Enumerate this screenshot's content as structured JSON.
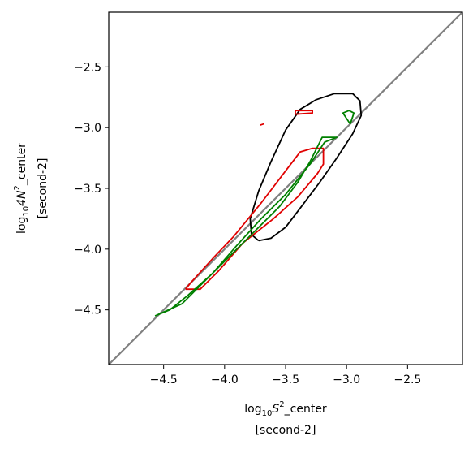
{
  "chart_data": {
    "type": "contour",
    "xlabel": {
      "prefix": "log",
      "sub": "10",
      "var": "S",
      "sup": "2",
      "suffix": "_center",
      "units": "[second-2]"
    },
    "ylabel": {
      "prefix": "log",
      "sub": "10",
      "var": "4N",
      "sup": "2",
      "suffix": "_center",
      "units": "[second-2]"
    },
    "xlim": [
      -4.95,
      -2.05
    ],
    "ylim": [
      -4.95,
      -2.05
    ],
    "grid": false,
    "x_ticks": [
      {
        "value": -4.5,
        "label": "−4.5"
      },
      {
        "value": -4.0,
        "label": "−4.0"
      },
      {
        "value": -3.5,
        "label": "−3.5"
      },
      {
        "value": -3.0,
        "label": "−3.0"
      },
      {
        "value": -2.5,
        "label": "−2.5"
      }
    ],
    "y_ticks": [
      {
        "value": -2.5,
        "label": "−2.5"
      },
      {
        "value": -3.0,
        "label": "−3.0"
      },
      {
        "value": -3.5,
        "label": "−3.5"
      },
      {
        "value": -4.0,
        "label": "−4.0"
      },
      {
        "value": -4.5,
        "label": "−4.5"
      }
    ],
    "reference_line": {
      "color": "#808080",
      "points": [
        [
          -4.95,
          -4.95
        ],
        [
          -2.05,
          -2.05
        ]
      ]
    },
    "series": [
      {
        "color": "#000000",
        "contours": [
          [
            [
              -3.72,
              -3.93
            ],
            [
              -3.62,
              -3.91
            ],
            [
              -3.5,
              -3.82
            ],
            [
              -3.37,
              -3.65
            ],
            [
              -3.22,
              -3.45
            ],
            [
              -3.08,
              -3.25
            ],
            [
              -2.95,
              -3.05
            ],
            [
              -2.88,
              -2.9
            ],
            [
              -2.89,
              -2.78
            ],
            [
              -2.95,
              -2.72
            ],
            [
              -3.1,
              -2.72
            ],
            [
              -3.25,
              -2.77
            ],
            [
              -3.38,
              -2.85
            ],
            [
              -3.5,
              -3.02
            ],
            [
              -3.62,
              -3.28
            ],
            [
              -3.72,
              -3.52
            ],
            [
              -3.79,
              -3.75
            ],
            [
              -3.78,
              -3.88
            ],
            [
              -3.72,
              -3.93
            ]
          ]
        ]
      },
      {
        "color": "#e00000",
        "contours": [
          [
            [
              -3.71,
              -2.98
            ],
            [
              -3.68,
              -2.97
            ],
            [
              -3.71,
              -2.98
            ]
          ],
          [
            [
              -3.42,
              -2.89
            ],
            [
              -3.28,
              -2.88
            ],
            [
              -3.28,
              -2.86
            ],
            [
              -3.42,
              -2.86
            ],
            [
              -3.42,
              -2.89
            ]
          ],
          [
            [
              -4.32,
              -4.33
            ],
            [
              -4.2,
              -4.33
            ],
            [
              -4.05,
              -4.18
            ],
            [
              -3.85,
              -3.95
            ],
            [
              -3.6,
              -3.75
            ],
            [
              -3.4,
              -3.57
            ],
            [
              -3.24,
              -3.38
            ],
            [
              -3.19,
              -3.3
            ],
            [
              -3.19,
              -3.17
            ],
            [
              -3.28,
              -3.17
            ],
            [
              -3.38,
              -3.2
            ],
            [
              -3.48,
              -3.33
            ],
            [
              -3.7,
              -3.62
            ],
            [
              -3.93,
              -3.9
            ],
            [
              -4.1,
              -4.08
            ],
            [
              -4.28,
              -4.28
            ],
            [
              -4.32,
              -4.33
            ]
          ]
        ]
      },
      {
        "color": "#008000",
        "contours": [
          [
            [
              -4.57,
              -4.55
            ],
            [
              -4.45,
              -4.5
            ],
            [
              -4.3,
              -4.38
            ],
            [
              -4.1,
              -4.2
            ],
            [
              -3.9,
              -3.97
            ],
            [
              -3.7,
              -3.75
            ],
            [
              -3.5,
              -3.55
            ],
            [
              -3.3,
              -3.3
            ],
            [
              -3.18,
              -3.12
            ],
            [
              -3.08,
              -3.08
            ],
            [
              -3.2,
              -3.08
            ],
            [
              -3.3,
              -3.28
            ],
            [
              -3.4,
              -3.45
            ],
            [
              -3.55,
              -3.65
            ],
            [
              -3.75,
              -3.85
            ],
            [
              -3.95,
              -4.05
            ],
            [
              -4.15,
              -4.25
            ],
            [
              -4.35,
              -4.45
            ],
            [
              -4.57,
              -4.55
            ]
          ],
          [
            [
              -2.97,
              -2.97
            ],
            [
              -2.94,
              -2.88
            ],
            [
              -2.98,
              -2.86
            ],
            [
              -3.03,
              -2.88
            ],
            [
              -2.97,
              -2.97
            ]
          ]
        ]
      }
    ]
  }
}
